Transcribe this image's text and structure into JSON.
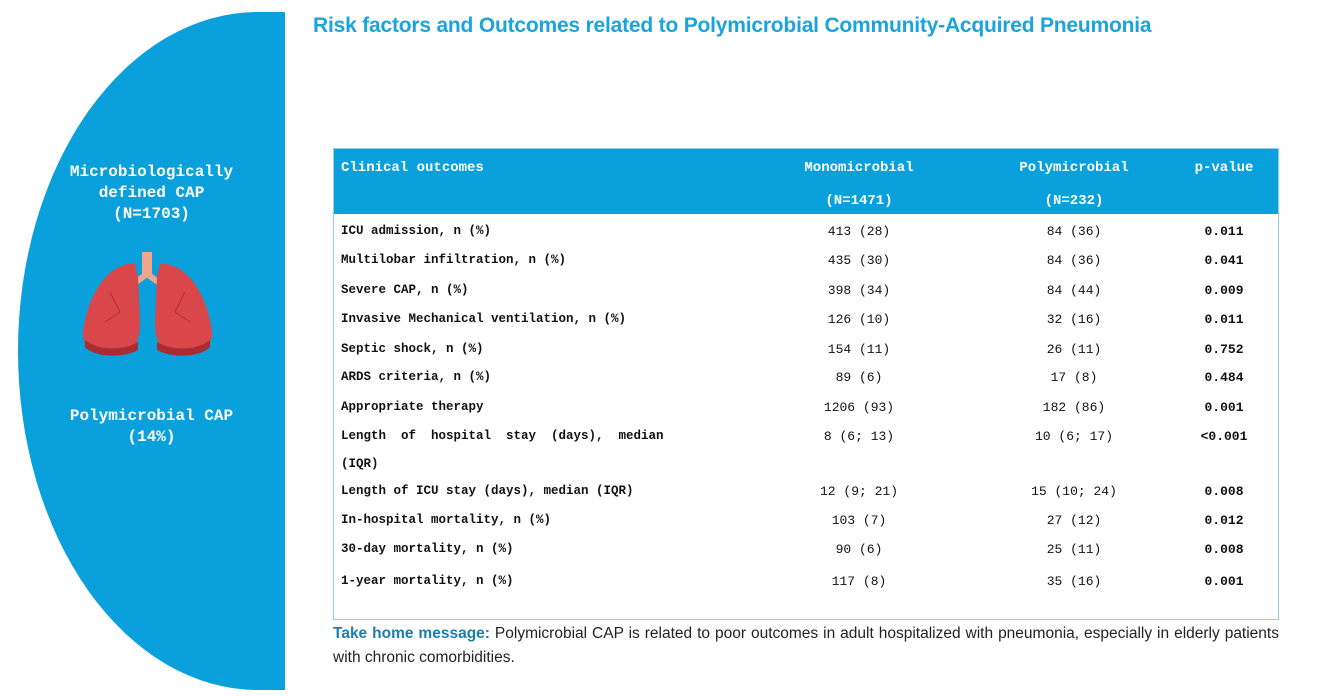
{
  "title": "Risk factors and Outcomes related to Polymicrobial Community-Acquired Pneumonia",
  "sidebar": {
    "line1": "Microbiologically",
    "line2": "defined CAP",
    "line3": "(N=1703)",
    "line4": "Polymicrobial CAP",
    "line5": "(14%)",
    "icon": "lungs-icon",
    "color": "#0aa0dc"
  },
  "table": {
    "headers": [
      "Clinical outcomes",
      "Monomicrobial",
      "Polymicrobial",
      "p-value"
    ],
    "subheaders": [
      "(N=1471)",
      "(N=232)"
    ],
    "rows": [
      [
        "ICU admission, n (%)",
        "413 (28)",
        "84 (36)",
        "0.011"
      ],
      [
        "Multilobar infiltration, n (%)",
        "435 (30)",
        "84 (36)",
        "0.041"
      ],
      [
        "Severe CAP, n (%)",
        "398 (34)",
        "84 (44)",
        "0.009"
      ],
      [
        "Invasive Mechanical ventilation, n (%)",
        "126 (10)",
        "32 (16)",
        "0.011"
      ],
      [
        "Septic shock, n (%)",
        "154 (11)",
        "26 (11)",
        "0.752"
      ],
      [
        "ARDS criteria, n (%)",
        "89 (6)",
        "17 (8)",
        "0.484"
      ],
      [
        "Appropriate therapy",
        "1206 (93)",
        "182 (86)",
        "0.001"
      ],
      [
        "Length  of  hospital  stay  (days),  median",
        "8 (6; 13)",
        "10 (6; 17)",
        "<0.001"
      ],
      [
        "(IQR)",
        "",
        "",
        ""
      ],
      [
        "Length of ICU stay (days), median (IQR)",
        "12 (9; 21)",
        "15 (10; 24)",
        "0.008"
      ],
      [
        "In-hospital mortality, n (%)",
        "103 (7)",
        "27 (12)",
        "0.012"
      ],
      [
        "30-day mortality, n (%)",
        "90 (6)",
        "25 (11)",
        "0.008"
      ],
      [
        "1-year mortality, n (%)",
        "117 (8)",
        "35 (16)",
        "0.001"
      ]
    ]
  },
  "message": {
    "label": "Take home message:",
    "text": " Polymicrobial CAP is related to poor outcomes in adult hospitalized with pneumonia, especially in elderly patients with chronic comorbidities."
  }
}
